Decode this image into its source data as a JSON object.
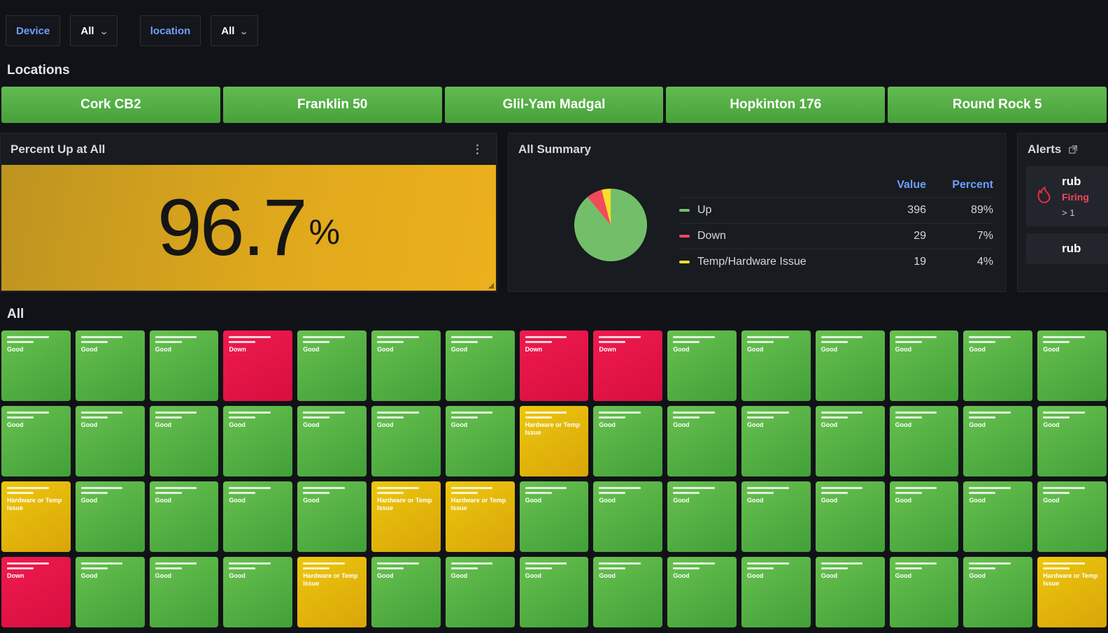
{
  "filters": {
    "device": {
      "label": "Device",
      "value": "All"
    },
    "location": {
      "label": "location",
      "value": "All"
    }
  },
  "icons": {
    "dropdown_caret": "⌄",
    "panel_menu": "⋮"
  },
  "rows": {
    "locations_title": "Locations",
    "all_title": "All"
  },
  "locations": [
    "Cork CB2",
    "Franklin 50",
    "Glil-Yam Madgal",
    "Hopkinton 176",
    "Round Rock 5"
  ],
  "panels": {
    "percent_up": {
      "title": "Percent Up at All",
      "value": "96.7",
      "unit": "%"
    },
    "summary": {
      "title": "All Summary",
      "columns": {
        "value": "Value",
        "percent": "Percent"
      },
      "legend": [
        {
          "label": "Up",
          "value": "396",
          "percent": "89%"
        },
        {
          "label": "Down",
          "value": "29",
          "percent": "7%"
        },
        {
          "label": "Temp/Hardware Issue",
          "value": "19",
          "percent": "4%"
        }
      ]
    },
    "alerts": {
      "title": "Alerts",
      "items": [
        {
          "name": "rub",
          "state": "Firing",
          "detail": "> 1"
        },
        {
          "name": "rub"
        }
      ]
    }
  },
  "chart_data": {
    "type": "pie",
    "title": "All Summary",
    "labels": [
      "Up",
      "Down",
      "Temp/Hardware Issue"
    ],
    "values": [
      396,
      29,
      19
    ],
    "percents": [
      89,
      7,
      4
    ],
    "colors": [
      "#73bf69",
      "#f2495c",
      "#fade2a"
    ],
    "legend_position": "right"
  },
  "grid": {
    "labels": {
      "good": "Good",
      "down": "Down",
      "hw": "Hardware or Temp Issue"
    },
    "colors": {
      "good": "#56a64b",
      "down": "#e02f44",
      "hw": "#f2cc0c"
    },
    "rows": [
      [
        "good",
        "good",
        "good",
        "down",
        "good",
        "good",
        "good",
        "down",
        "down",
        "good",
        "good",
        "good",
        "good",
        "good",
        "good"
      ],
      [
        "good",
        "good",
        "good",
        "good",
        "good",
        "good",
        "good",
        "hw",
        "good",
        "good",
        "good",
        "good",
        "good",
        "good",
        "good"
      ],
      [
        "hw",
        "good",
        "good",
        "good",
        "good",
        "hw",
        "hw",
        "good",
        "good",
        "good",
        "good",
        "good",
        "good",
        "good",
        "good"
      ],
      [
        "down",
        "good",
        "good",
        "good",
        "hw",
        "good",
        "good",
        "good",
        "good",
        "good",
        "good",
        "good",
        "good",
        "good",
        "hw"
      ]
    ]
  }
}
